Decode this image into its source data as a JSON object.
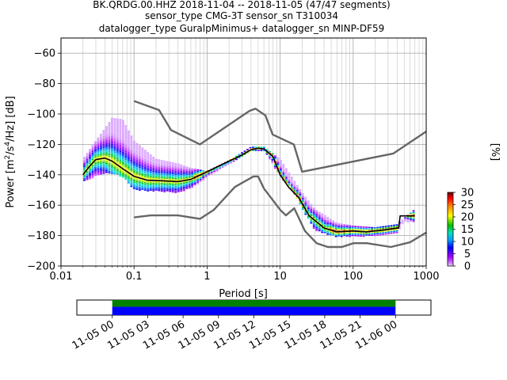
{
  "title_lines": [
    "BK.QRDG.00.HHZ   2018-11-04 -- 2018-11-05  (47/47 segments)",
    "sensor_type CMG-3T sensor_sn T310034",
    "datalogger_type GuralpMinimus+ datalogger_sn MINP-DF59"
  ],
  "colors": {
    "noise_model": "#666666",
    "mean_curve": "#000000",
    "coverage_green": "#008000",
    "coverage_blue": "#0000ff"
  },
  "chart_data": [
    {
      "type": "heatmap",
      "xlabel": "Period [s]",
      "ylabel": "Power [m²/s⁴/Hz] [dB]",
      "xscale": "log",
      "xlim": [
        0.01,
        1000
      ],
      "ylim": [
        -200,
        -50
      ],
      "xticks": [
        0.01,
        0.1,
        1,
        10,
        100,
        1000
      ],
      "xtick_labels": [
        "0.01",
        "0.1",
        "1",
        "10",
        "100",
        "1000"
      ],
      "yticks": [
        -200,
        -180,
        -160,
        -140,
        -120,
        -100,
        -80,
        -60
      ],
      "ytick_labels": [
        "−200",
        "−180",
        "−160",
        "−140",
        "−120",
        "−100",
        "−80",
        "−60"
      ],
      "grid": true,
      "colorbar": {
        "label": "[%]",
        "range": [
          0,
          30
        ],
        "ticks": [
          0,
          5,
          10,
          15,
          20,
          25,
          30
        ],
        "tick_labels": [
          "0",
          "5",
          "10",
          "15",
          "20",
          "25",
          "30"
        ]
      },
      "series": [
        {
          "kind": "noise-model-high",
          "x": [
            0.1,
            0.22,
            0.32,
            0.8,
            3.8,
            4.6,
            6.3,
            7.9,
            15.4,
            20,
            354.8,
            1000
          ],
          "y": [
            -91.5,
            -97.4,
            -110.5,
            -120,
            -98,
            -96.5,
            -101,
            -113.5,
            -120,
            -138,
            -126,
            -111.5
          ]
        },
        {
          "kind": "noise-model-low",
          "x": [
            0.1,
            0.17,
            0.4,
            0.8,
            1.24,
            2.4,
            4.3,
            5,
            6,
            10,
            12,
            15.6,
            21.9,
            31.6,
            45,
            70,
            101,
            154,
            328,
            600,
            1000
          ],
          "y": [
            -168,
            -166.7,
            -166.7,
            -169,
            -163,
            -148,
            -141.1,
            -141.1,
            -149,
            -163,
            -166.7,
            -162,
            -177,
            -185,
            -187.5,
            -187.5,
            -185,
            -185,
            -187.5,
            -184.4,
            -178
          ]
        },
        {
          "kind": "mean",
          "x": [
            0.02,
            0.025,
            0.03,
            0.04,
            0.05,
            0.07,
            0.1,
            0.15,
            0.25,
            0.4,
            0.6,
            1,
            2,
            3,
            4,
            5,
            6,
            8,
            10,
            13,
            18,
            25,
            40,
            60,
            100,
            150,
            250,
            350,
            420,
            440,
            500,
            700
          ],
          "y": [
            -140,
            -134,
            -130,
            -129,
            -131,
            -136,
            -141,
            -143.5,
            -144,
            -144.5,
            -143,
            -138,
            -131,
            -127,
            -123.5,
            -122.5,
            -123,
            -128,
            -140,
            -148,
            -155,
            -167,
            -175,
            -177.5,
            -177,
            -177.5,
            -176.5,
            -175.5,
            -175,
            -167,
            -167,
            -167
          ]
        },
        {
          "kind": "psd-upper-envelope",
          "x": [
            0.02,
            0.03,
            0.04,
            0.05,
            0.07,
            0.1,
            0.2,
            0.4,
            0.6,
            1,
            2,
            4,
            6,
            10,
            15,
            20,
            30,
            60,
            100,
            200,
            400,
            700
          ],
          "y": [
            -130,
            -118,
            -110,
            -103,
            -104,
            -118,
            -130,
            -133,
            -136,
            -138,
            -131,
            -122,
            -122,
            -130,
            -143,
            -152,
            -163,
            -172,
            -174,
            -175,
            -173,
            -163
          ]
        },
        {
          "kind": "psd-lower-envelope",
          "x": [
            0.02,
            0.03,
            0.04,
            0.06,
            0.08,
            0.1,
            0.2,
            0.4,
            0.6,
            1,
            2,
            4,
            6,
            10,
            15,
            20,
            30,
            60,
            100,
            200,
            400,
            500,
            700
          ],
          "y": [
            -145,
            -141,
            -139,
            -140,
            -144,
            -150,
            -151,
            -152,
            -149,
            -142,
            -133,
            -124.5,
            -124,
            -141,
            -151,
            -162,
            -177,
            -181,
            -180.5,
            -180.5,
            -178.5,
            -171,
            -171
          ]
        }
      ]
    },
    {
      "type": "bar",
      "kind": "data-coverage",
      "xlim": [
        "11-04 21:00",
        "11-06 03:00"
      ],
      "xtick_labels": [
        "11-05 00",
        "11-05 03",
        "11-05 06",
        "11-05 09",
        "11-05 12",
        "11-05 15",
        "11-05 18",
        "11-05 21",
        "11-06 00"
      ],
      "bars": [
        {
          "name": "coverage-green",
          "start": "11-05 00",
          "end": "11-06 00",
          "color": "#008000"
        },
        {
          "name": "coverage-blue",
          "start": "11-05 00",
          "end": "11-06 00",
          "color": "#0000ff"
        }
      ]
    }
  ]
}
